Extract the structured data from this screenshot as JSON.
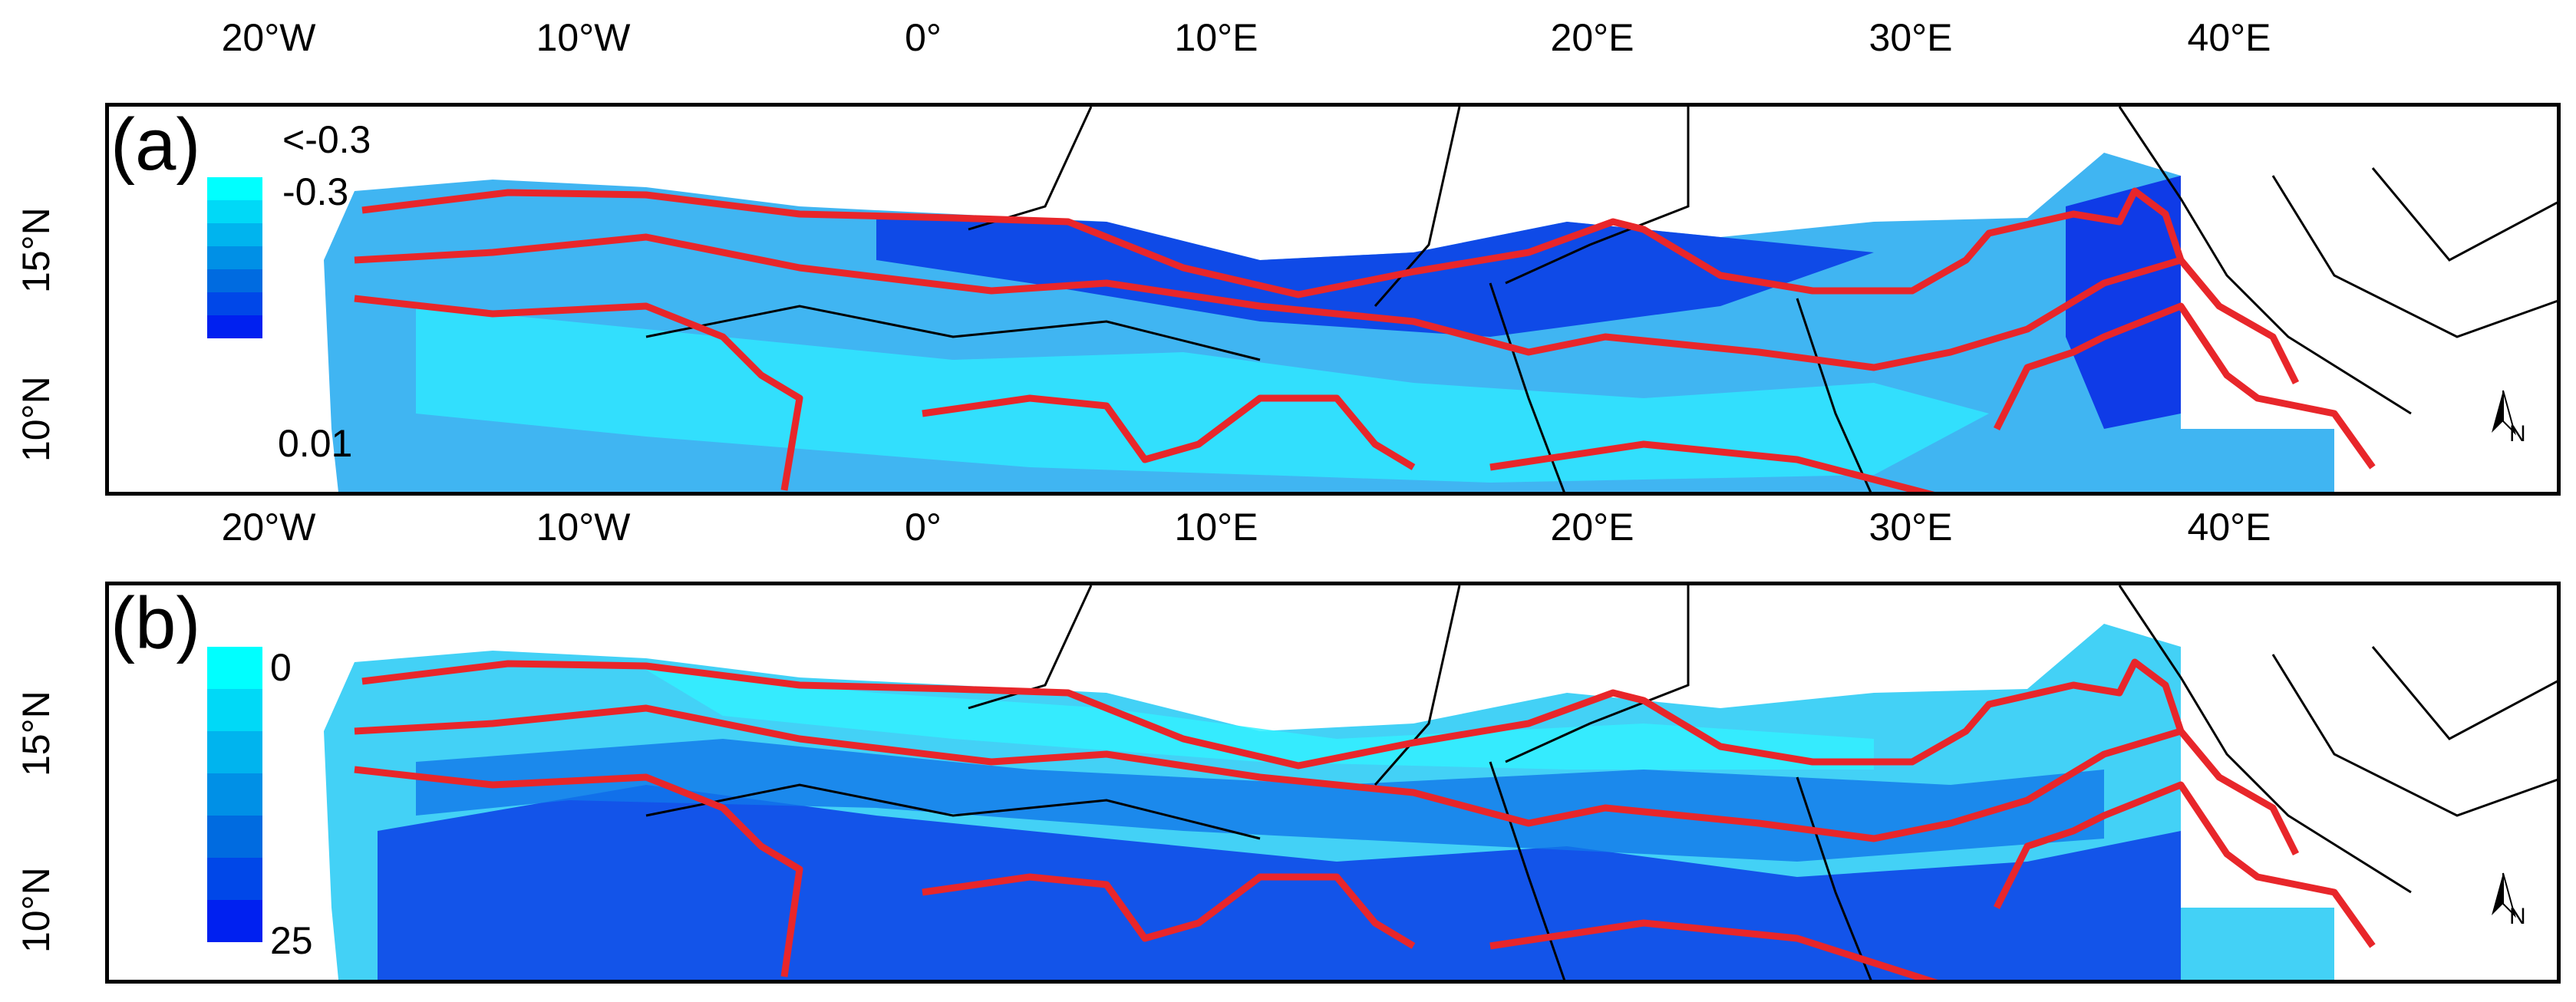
{
  "x_ticks": [
    "20°W",
    "10°W",
    "0°",
    "10°E",
    "20°E",
    "30°E",
    "40°E"
  ],
  "y_ticks": [
    "15°N",
    "10°N"
  ],
  "panel_a": {
    "label": "(a)",
    "legend_labels": {
      "top_outside": "<-0.3",
      "top": "-0.3",
      "bottom": "0.01"
    },
    "legend_colors": [
      "#00ffff",
      "#00d9f7",
      "#00b4ee",
      "#0090e6",
      "#006be0",
      "#0047e8",
      "#0020f0"
    ]
  },
  "panel_b": {
    "label": "(b)",
    "legend_labels": {
      "top": "0",
      "bottom": "25"
    },
    "legend_colors": [
      "#00ffff",
      "#00d9f7",
      "#00b4ee",
      "#0090e6",
      "#006be0",
      "#0047e8",
      "#0020f0"
    ]
  },
  "north_arrow_label": "N",
  "colors": {
    "boundary": "#e8262a",
    "borders": "#000000"
  }
}
